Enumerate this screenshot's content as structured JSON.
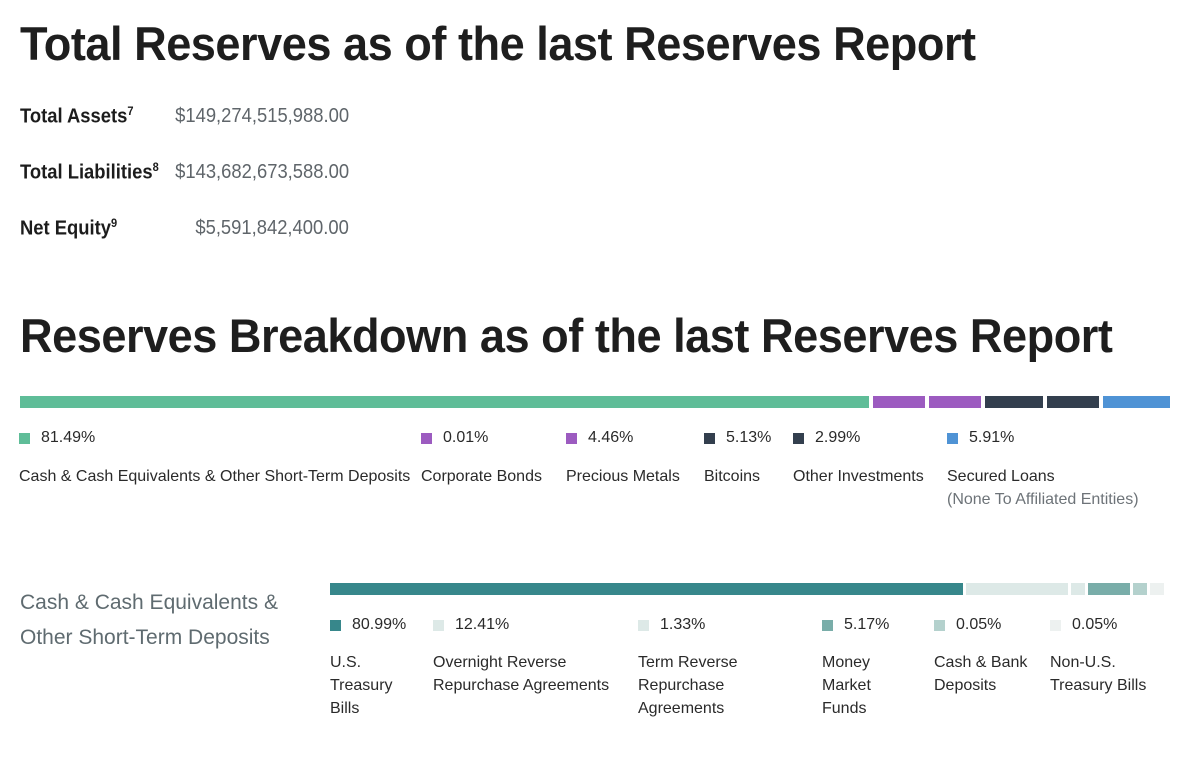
{
  "totals": {
    "title": "Total Reserves as of the last Reserves Report",
    "items": [
      {
        "label": "Total Assets",
        "sup": "7",
        "value": "$149,274,515,988.00"
      },
      {
        "label": "Total Liabilities",
        "sup": "8",
        "value": "$143,682,673,588.00"
      },
      {
        "label": "Net Equity",
        "sup": "9",
        "value": "$5,591,842,400.00"
      }
    ]
  },
  "chart_data": [
    {
      "type": "bar",
      "title": "Reserves Breakdown as of the last Reserves Report",
      "categories": [
        "Cash & Cash Equivalents & Other Short-Term Deposits",
        "Corporate Bonds",
        "Precious Metals",
        "Bitcoins",
        "Other Investments",
        "Secured Loans"
      ],
      "values": [
        81.49,
        0.01,
        4.46,
        5.13,
        2.99,
        5.91
      ],
      "labels": [
        "81.49%",
        "0.01%",
        "4.46%",
        "5.13%",
        "2.99%",
        "5.91%"
      ],
      "sublabels": [
        "",
        "",
        "",
        "",
        "",
        "(None To Affiliated Entities)"
      ],
      "colors": [
        "#5fbd98",
        "#9c5bc0",
        "#9c5bc0",
        "#333f4e",
        "#333f4e",
        "#4f93d5"
      ]
    },
    {
      "type": "bar",
      "title": "Cash & Cash Equivalents & Other Short-Term Deposits",
      "categories": [
        "U.S. Treasury Bills",
        "Overnight Reverse Repurchase Agreements",
        "Term Reverse Repurchase Agreements",
        "Money Market Funds",
        "Cash & Bank Deposits",
        "Non-U.S. Treasury Bills"
      ],
      "values": [
        80.99,
        12.41,
        1.33,
        5.17,
        0.05,
        0.05
      ],
      "labels": [
        "80.99%",
        "12.41%",
        "1.33%",
        "5.17%",
        "0.05%",
        "0.05%"
      ],
      "colors": [
        "#37878b",
        "#dde9e7",
        "#dde9e7",
        "#79ada9",
        "#b4d1cd",
        "#edf1f0"
      ]
    }
  ],
  "cash_title_lines": [
    "Cash & Cash Equivalents &",
    "Other Short-Term Deposits"
  ]
}
